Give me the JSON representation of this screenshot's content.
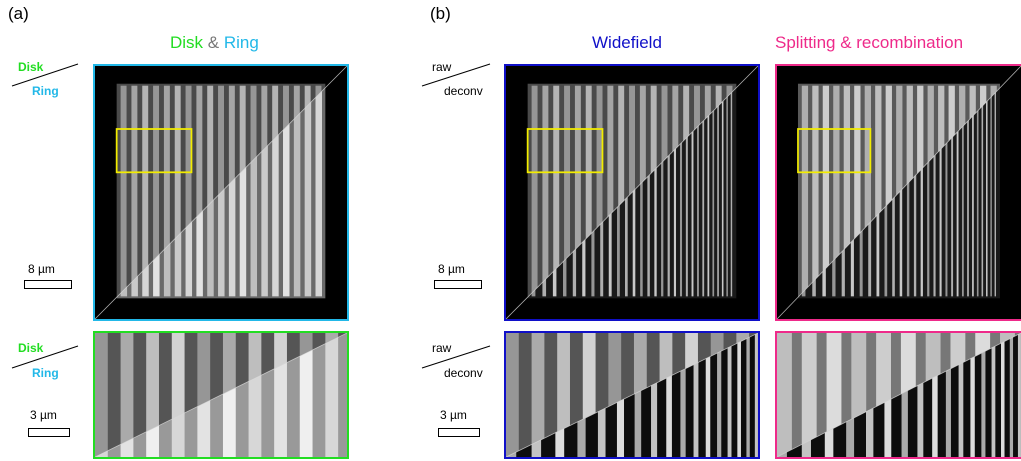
{
  "panels": {
    "a": {
      "letter": "(a)",
      "title_part1": "Disk",
      "title_amp": " & ",
      "title_part2": "Ring",
      "top_label": "Disk",
      "bottom_label": "Ring",
      "scale_top": "8 µm",
      "scale_bottom": "3 µm"
    },
    "b": {
      "letter": "(b)",
      "title_widefield": "Widefield",
      "title_splitting": "Splitting & recombination",
      "top_label": "raw",
      "bottom_label": "deconv",
      "scale_top": "8 µm",
      "scale_bottom": "3 µm"
    }
  },
  "colors": {
    "disk_green": "#22dd22",
    "ring_cyan": "#22b8e8",
    "amp_gray": "#777777",
    "widefield_blue": "#1010c8",
    "splitting_pink": "#ee2a8a",
    "roi_yellow": "#f2ec00"
  }
}
